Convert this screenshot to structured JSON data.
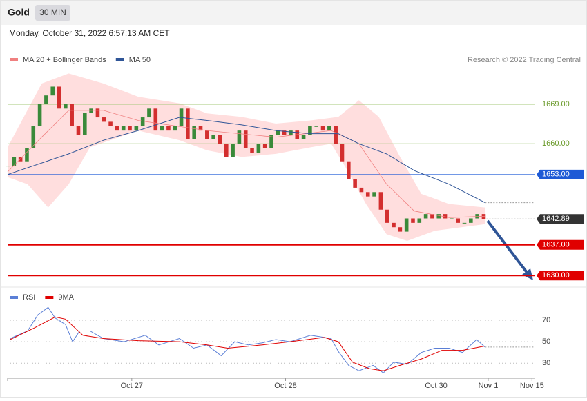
{
  "header": {
    "title": "Gold",
    "timeframe": "30 MIN",
    "timestamp": "Monday, October 31, 2022 6:57:13 AM CET"
  },
  "chart_data": [
    {
      "type": "candlestick",
      "legend": [
        {
          "name": "MA 20 + Bollinger Bands",
          "color": "#f08080"
        },
        {
          "name": "MA 50",
          "color": "#2f5597"
        }
      ],
      "source": "Research © 2022 Trading Central",
      "xlim": [
        0,
        82
      ],
      "ylim": [
        1628,
        1677
      ],
      "xticks": [
        {
          "value": 19.3,
          "label": "Oct 27"
        },
        {
          "value": 43.2,
          "label": "Oct 28"
        },
        {
          "value": 66.6,
          "label": "Oct 30"
        },
        {
          "value": 74.7,
          "label": "Nov 1"
        },
        {
          "value": 81.5,
          "label": "Nov 15"
        }
      ],
      "series": [
        {
          "name": "Gold",
          "up_color": "#3a8a3a",
          "down_color": "#d32f2f",
          "values": [
            1655,
            1657,
            1656,
            1659,
            1664,
            1669,
            1671,
            1673,
            1668,
            1669,
            1664,
            1662,
            1667,
            1668,
            1666,
            1665,
            1664,
            1663,
            1664,
            1663,
            1664,
            1666,
            1668,
            1663,
            1664,
            1663,
            1664,
            1668,
            1661,
            1664,
            1663,
            1661,
            1662,
            1660,
            1657,
            1660,
            1663,
            1659,
            1658,
            1660,
            1659,
            1662,
            1663,
            1662,
            1663,
            1661,
            1662,
            1664,
            1664,
            1663,
            1664,
            1660,
            1656,
            1652,
            1650,
            1649,
            1648,
            1649,
            1645,
            1642,
            1641,
            1640,
            1643,
            1642,
            1643,
            1644,
            1643,
            1644,
            1643,
            1643,
            1642,
            1642,
            1643,
            1644,
            1642.89
          ]
        },
        {
          "name": "MA 50",
          "color": "#2f5597",
          "x": [
            0,
            9.5,
            14.9,
            20.3,
            26.7,
            31,
            36.4,
            41.7,
            47.1,
            51.4,
            54.6,
            58.9,
            63.2,
            68.6,
            74.2
          ],
          "values": [
            1653,
            1657.7,
            1660.8,
            1663,
            1666,
            1665.3,
            1664.3,
            1663,
            1662.3,
            1662.3,
            1660,
            1657.7,
            1653.9,
            1650.8,
            1646.6
          ]
        },
        {
          "name": "MA 20",
          "color": "#f08080",
          "x": [
            0,
            5.3,
            9.5,
            14.9,
            20.3,
            31,
            41.7,
            50.3,
            54.6,
            58.9,
            63.2,
            68.6,
            74.2
          ],
          "values": [
            1653.6,
            1661.5,
            1667.6,
            1667.6,
            1665.3,
            1663,
            1661.5,
            1663,
            1660,
            1650.8,
            1644.7,
            1643.2,
            1643.5
          ]
        },
        {
          "name": "Bollinger Upper",
          "color": "#ffd6d6",
          "x": [
            0,
            5.3,
            9.5,
            14.9,
            20.3,
            26.7,
            31,
            36.4,
            41.7,
            47.1,
            51.4,
            54.6,
            57.7,
            61,
            64.3,
            68.6,
            74.2
          ],
          "values": [
            1659.2,
            1673.7,
            1676,
            1673.7,
            1670.7,
            1669.2,
            1666.9,
            1666.1,
            1664.6,
            1665.3,
            1666.1,
            1669.9,
            1666.1,
            1657,
            1648.6,
            1646.3,
            1645.5
          ]
        },
        {
          "name": "Bollinger Lower",
          "color": "#ffd6d6",
          "x": [
            0,
            3.1,
            6.3,
            9.5,
            12.8,
            20.3,
            26.7,
            31,
            36.4,
            41.7,
            47.1,
            50.3,
            52.5,
            55.7,
            58.9,
            62.1,
            66.4,
            74.2
          ],
          "values": [
            1652.4,
            1650.8,
            1645.5,
            1650.8,
            1659.2,
            1663,
            1660.8,
            1658.5,
            1657,
            1657.7,
            1659.2,
            1660,
            1654.7,
            1646.3,
            1639.4,
            1637.9,
            1640.2,
            1641.7
          ]
        }
      ],
      "levels": [
        {
          "value": 1669,
          "label": "1669.00",
          "color": "#a6c87a",
          "style": "thin"
        },
        {
          "value": 1660,
          "label": "1660.00",
          "color": "#a6c87a",
          "style": "thin"
        },
        {
          "value": 1653,
          "label": "1653.00",
          "color": "#1e5ad6",
          "style": "box"
        },
        {
          "value": 1642.89,
          "color": "#333333",
          "style": "box"
        },
        {
          "value": 1637,
          "label": "1637.00",
          "color": "#e00000",
          "style": "box"
        },
        {
          "value": 1630,
          "label": "1630.00",
          "color": "#e00000",
          "style": "box"
        }
      ]
    },
    {
      "type": "line",
      "xlim": [
        0,
        82
      ],
      "ylim": [
        18,
        95
      ],
      "yticks": [
        30,
        50,
        70
      ],
      "series": [
        {
          "name": "RSI",
          "color": "#5b7fd6",
          "x": [
            0.4,
            3.1,
            4.7,
            6.3,
            7.4,
            9,
            10.1,
            11.2,
            12.8,
            14.9,
            18.1,
            21.4,
            23.5,
            26.7,
            28.9,
            31,
            33.2,
            35.3,
            37.4,
            39.6,
            41.7,
            43.9,
            47.1,
            50.3,
            51.4,
            53,
            54.6,
            56.8,
            58.4,
            60,
            62.1,
            64.3,
            66.4,
            68.6,
            70.7,
            72.9,
            74.2
          ],
          "values": [
            53,
            60,
            75,
            82,
            72,
            66,
            50,
            60,
            60,
            53,
            50,
            56,
            47,
            53,
            44,
            47,
            37,
            50,
            47,
            49,
            52,
            50,
            56,
            53,
            41,
            28,
            23,
            28,
            21,
            31,
            29,
            40,
            44,
            44,
            40,
            52,
            45
          ]
        },
        {
          "name": "9MA",
          "color": "#e00000",
          "x": [
            0.4,
            4.2,
            7.4,
            9,
            11.7,
            14.9,
            20.3,
            26.7,
            31,
            34.2,
            39.6,
            43.9,
            49.2,
            51.4,
            53.6,
            56.2,
            58.4,
            61,
            64.3,
            67.5,
            70.7,
            74.2
          ],
          "values": [
            52,
            63,
            73,
            71,
            56,
            53,
            51,
            50,
            47,
            44,
            47,
            50,
            54,
            50,
            31,
            25,
            23,
            28,
            34,
            42,
            42,
            46
          ]
        }
      ]
    }
  ]
}
